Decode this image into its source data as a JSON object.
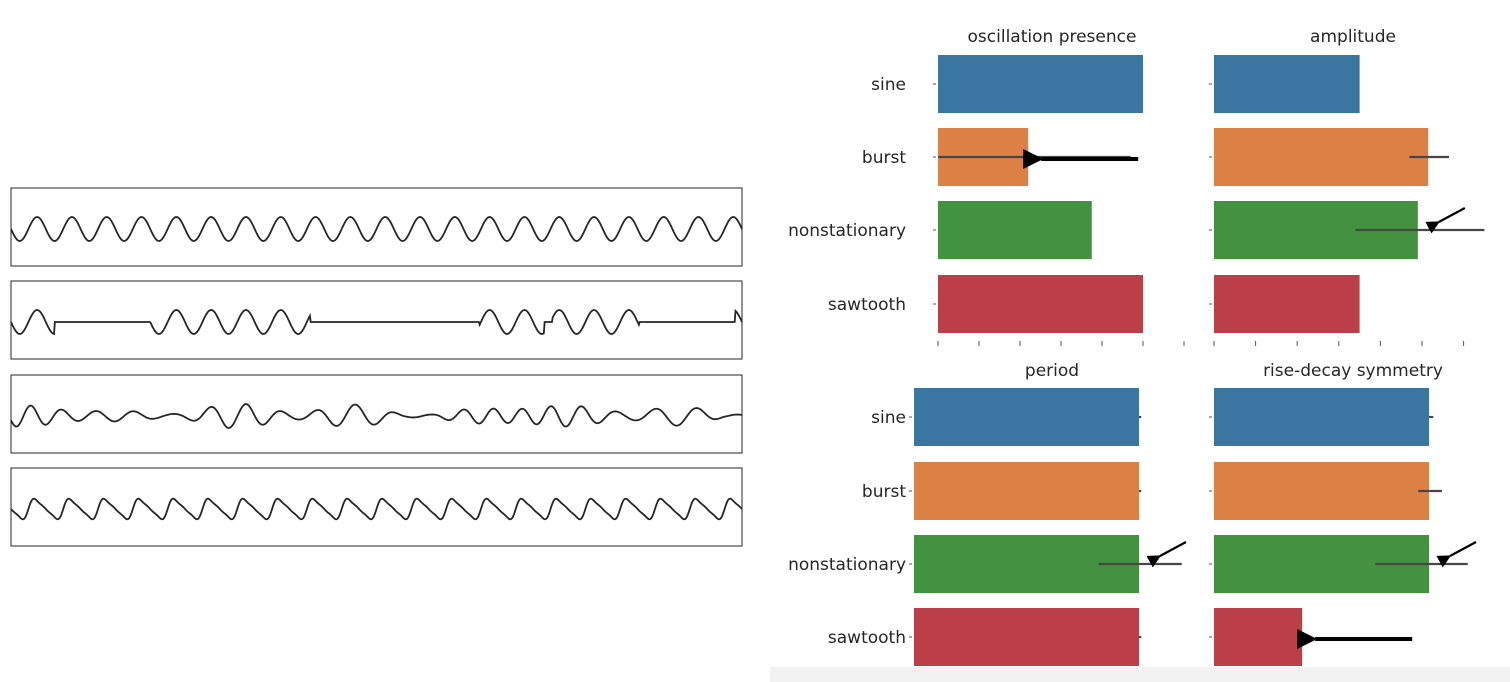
{
  "chart_data": [
    {
      "type": "line",
      "panels": [
        {
          "name": "sine",
          "waveform": "sine",
          "cycles": 21
        },
        {
          "name": "burst",
          "waveform": "burst",
          "cycles": 21
        },
        {
          "name": "nonstationary",
          "waveform": "nonstationary",
          "cycles": 21
        },
        {
          "name": "sawtooth",
          "waveform": "sawtooth",
          "cycles": 21
        }
      ],
      "line_color": "#262626",
      "axes_ticks": false
    },
    {
      "type": "bar",
      "orientation": "horizontal",
      "categories": [
        "sine",
        "burst",
        "nonstationary",
        "sawtooth"
      ],
      "colors": [
        "#3a76a0",
        "#dc8046",
        "#43923f",
        "#bb3f48"
      ],
      "xlim": [
        0,
        1.2
      ],
      "subplots": [
        {
          "title": "oscillation presence",
          "show_categories": true,
          "values": [
            1.0,
            0.44,
            0.75,
            1.0
          ],
          "error": [
            null,
            [
              0.0,
              0.94
            ],
            null,
            null
          ],
          "arrows": [
            {
              "category": "burst",
              "style": "large"
            }
          ]
        },
        {
          "title": "amplitude",
          "show_categories": false,
          "values": [
            0.7,
            1.03,
            0.98,
            0.7
          ],
          "error": [
            null,
            [
              0.94,
              1.13
            ],
            [
              0.68,
              1.3
            ],
            null
          ],
          "arrows": [
            {
              "category": "nonstationary",
              "style": "small"
            }
          ]
        },
        {
          "title": "period",
          "show_categories": true,
          "values": [
            1.0,
            1.0,
            1.0,
            1.0
          ],
          "error": [
            [
              1.0,
              1.01
            ],
            [
              1.0,
              1.01
            ],
            [
              0.82,
              1.19
            ],
            [
              1.0,
              1.01
            ]
          ],
          "arrows": [
            {
              "category": "nonstationary",
              "style": "small"
            }
          ]
        },
        {
          "title": "rise-decay symmetry",
          "show_categories": false,
          "values": [
            1.0,
            1.0,
            1.0,
            0.41
          ],
          "error": [
            [
              1.0,
              1.02
            ],
            [
              0.95,
              1.06
            ],
            [
              0.75,
              1.18
            ],
            [
              0.41,
              0.43
            ]
          ],
          "arrows": [
            {
              "category": "nonstationary",
              "style": "small"
            },
            {
              "category": "sawtooth",
              "style": "large"
            }
          ]
        }
      ]
    }
  ]
}
